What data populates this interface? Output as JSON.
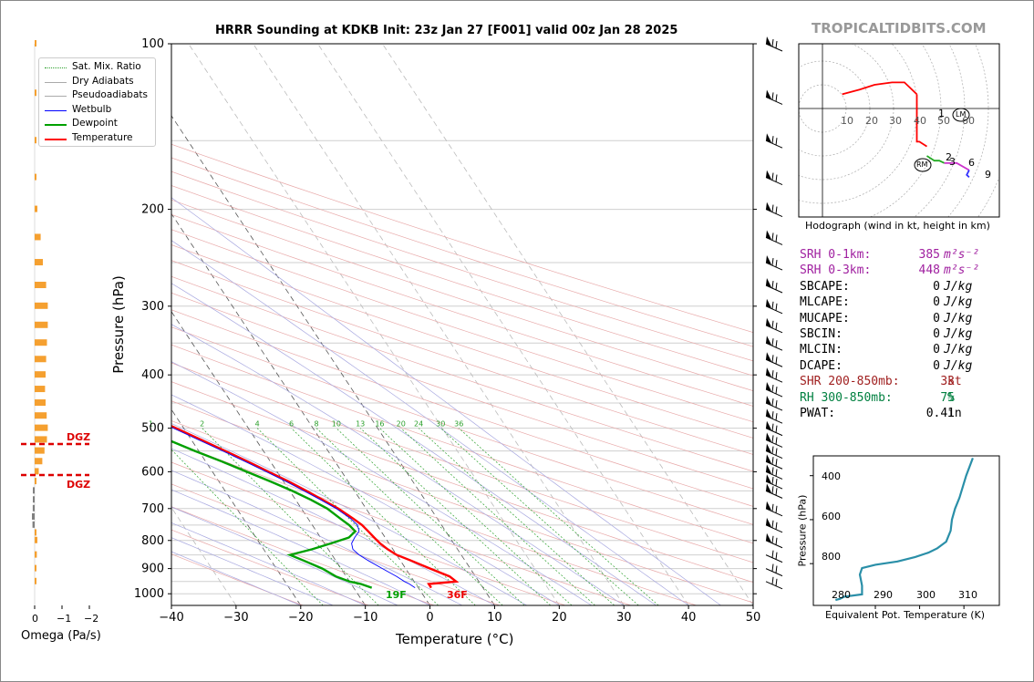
{
  "title": "HRRR Sounding at KDKB Init: 23z Jan 27 [F001] valid 00z Jan 28 2025",
  "watermark": "TROPICALTIDBITS.COM",
  "omega": {
    "xlabel": "Omega (Pa/s)",
    "ticks": [
      "0",
      "−1",
      "−2"
    ],
    "dgz_label": "DGZ"
  },
  "skewt": {
    "xlabel": "Temperature (°C)",
    "ylabel": "Pressure (hPa)",
    "mix_labels": [
      "1",
      "2",
      "4",
      "6",
      "8",
      "10",
      "13",
      "16",
      "20",
      "24",
      "30",
      "36"
    ],
    "dewpoint_sfc_label": "19F",
    "temp_sfc_label": "36F"
  },
  "legend": [
    {
      "label": "Sat. Mix. Ratio",
      "color": "#2ca02c"
    },
    {
      "label": "Dry Adiabats",
      "color": "#aaaaaa"
    },
    {
      "label": "Pseudoadiabats",
      "color": "#aaaaaa"
    },
    {
      "label": "Wetbulb",
      "color": "#0000ff"
    },
    {
      "label": "Dewpoint",
      "color": "#00a000"
    },
    {
      "label": "Temperature",
      "color": "#ff0000"
    }
  ],
  "hodograph": {
    "caption": "Hodograph (wind in kt, height in km)",
    "ring_labels": [
      "10",
      "20",
      "30",
      "40",
      "50",
      "60"
    ],
    "height_labels": [
      "1",
      "2",
      "3",
      "6",
      "9"
    ],
    "rm_label": "RM",
    "lm_label": "LM"
  },
  "stats": [
    {
      "name": "SRH 0-1km:",
      "value": "385",
      "unit": "m²s⁻²",
      "color": "#a020a0"
    },
    {
      "name": "SRH 0-3km:",
      "value": "448",
      "unit": "m²s⁻²",
      "color": "#a020a0"
    },
    {
      "name": "SBCAPE:",
      "value": "0",
      "unit": "J/kg",
      "color": "#000000"
    },
    {
      "name": "MLCAPE:",
      "value": "0",
      "unit": "J/kg",
      "color": "#000000"
    },
    {
      "name": "MUCAPE:",
      "value": "0",
      "unit": "J/kg",
      "color": "#000000"
    },
    {
      "name": "SBCIN:",
      "value": "0",
      "unit": "J/kg",
      "color": "#000000"
    },
    {
      "name": "MLCIN:",
      "value": "0",
      "unit": "J/kg",
      "color": "#000000"
    },
    {
      "name": "DCAPE:",
      "value": "0",
      "unit": "J/kg",
      "color": "#000000"
    },
    {
      "name": "SHR 200-850mb:",
      "value": "33",
      "unit": "kt",
      "color": "#a02020"
    },
    {
      "name": "RH 300-850mb:",
      "value": "75",
      "unit": "%",
      "color": "#008040"
    },
    {
      "name": "PWAT:",
      "value": "0.41",
      "unit": "in",
      "color": "#000000"
    }
  ],
  "theta_e": {
    "xlabel": "Equivalent Pot. Temperature (K)",
    "ylabel": "Pressure (hPa)",
    "xticks": [
      "280",
      "290",
      "300",
      "310"
    ],
    "yticks": [
      "400",
      "600",
      "800"
    ]
  },
  "chart_data": [
    {
      "type": "line",
      "title": "HRRR Sounding at KDKB Init: 23z Jan 27 [F001] valid 00z Jan 28 2025",
      "xlabel": "Temperature (°C)",
      "ylabel": "Pressure (hPa)",
      "xlim": [
        -40,
        50
      ],
      "ylim": [
        1050,
        100
      ],
      "y_scale": "log",
      "skew": true,
      "x_ticks": [
        -40,
        -30,
        -20,
        -10,
        0,
        10,
        20,
        30,
        40,
        50
      ],
      "y_ticks": [
        100,
        200,
        300,
        400,
        500,
        600,
        700,
        800,
        900,
        1000
      ],
      "grid": true,
      "legend": "top-left",
      "series": [
        {
          "name": "Temperature",
          "color": "#ff0000",
          "p": [
            975,
            960,
            950,
            930,
            900,
            870,
            850,
            830,
            810,
            790,
            770,
            750,
            730,
            700,
            675,
            650,
            625,
            600,
            575,
            550,
            525,
            500,
            475,
            450,
            425,
            400,
            375,
            350,
            325,
            300,
            275,
            250,
            225,
            200,
            175,
            150,
            125,
            100
          ],
          "t": [
            2,
            2,
            6.5,
            6,
            3.8,
            1.6,
            0,
            -0.8,
            -1.4,
            -1.7,
            -2,
            -2.3,
            -3,
            -4.3,
            -5.8,
            -7.4,
            -9.2,
            -11.3,
            -13.5,
            -15.9,
            -18.5,
            -21.2,
            -24.2,
            -27.5,
            -31,
            -35,
            -39.2,
            -43.7,
            -48.5,
            -53.7,
            -58.9,
            -61.6,
            -60.5,
            -59,
            -57.8,
            -57.5,
            -58,
            -57.6
          ]
        },
        {
          "name": "Wetbulb",
          "color": "#0000ff",
          "p": [
            975,
            960,
            950,
            930,
            900,
            870,
            850,
            830,
            810,
            790,
            770,
            750,
            730,
            700,
            675,
            650,
            625,
            600,
            575,
            550,
            525,
            500,
            475,
            450,
            425,
            400,
            375,
            350,
            325,
            300,
            275,
            250,
            225,
            200,
            175,
            150,
            125,
            100
          ],
          "t": [
            -0.5,
            -1,
            -1.5,
            -2.2,
            -3.6,
            -5,
            -5.8,
            -6.2,
            -5.8,
            -4.7,
            -3.4,
            -3,
            -3.4,
            -4.6,
            -6.1,
            -7.8,
            -9.6,
            -11.7,
            -13.9,
            -16.3,
            -18.9,
            -21.6,
            -24.6,
            -27.9,
            -31.4,
            -35.4,
            -39.6,
            -44.1,
            -48.9,
            -54,
            -59.2,
            -61.8,
            -60.8,
            -59.3,
            -58.1,
            -57.8,
            -58.3,
            -57.9
          ]
        },
        {
          "name": "Dewpoint",
          "color": "#00a000",
          "p": [
            975,
            960,
            950,
            930,
            900,
            870,
            850,
            830,
            810,
            790,
            770,
            750,
            730,
            700,
            675,
            650,
            625,
            600,
            575,
            550,
            525,
            500,
            475,
            450,
            425,
            400,
            375,
            350,
            325,
            300,
            275,
            250,
            225,
            200,
            175,
            150,
            125,
            100
          ],
          "t": [
            -7.2,
            -8.5,
            -10,
            -11.6,
            -12.9,
            -15,
            -16.5,
            -12.5,
            -9,
            -5.6,
            -4,
            -4.3,
            -5,
            -6,
            -7.6,
            -9.6,
            -12,
            -14.7,
            -17.5,
            -20.6,
            -23.6,
            -26.5,
            -30,
            -33.5,
            -37.5,
            -42,
            -47,
            -53,
            -60,
            -67,
            -73,
            -77,
            -80,
            -83,
            -84,
            -85,
            -82,
            -75
          ]
        }
      ]
    },
    {
      "type": "bar",
      "title": "",
      "xlabel": "Omega (Pa/s)",
      "xlim": [
        0,
        -2
      ],
      "values": [
        -0.02,
        -0.04,
        -0.03,
        -0.06,
        -0.1,
        -0.22,
        -0.3,
        -0.42,
        -0.48,
        -0.48,
        -0.45,
        -0.42,
        -0.4,
        -0.38,
        -0.4,
        -0.44,
        -0.48,
        -0.45,
        -0.36,
        -0.28,
        -0.15,
        -0.05,
        0.02,
        0.04,
        0.07,
        0.1,
        0.08,
        -0.05,
        -0.1,
        -0.08,
        -0.05,
        -0.03
      ],
      "pressures": [
        100,
        123,
        150,
        175,
        200,
        225,
        250,
        275,
        300,
        325,
        350,
        375,
        400,
        425,
        450,
        475,
        500,
        525,
        550,
        575,
        600,
        625,
        650,
        675,
        700,
        725,
        750,
        775,
        800,
        850,
        900,
        950
      ]
    },
    {
      "type": "line",
      "title": "Hodograph (wind in kt, height in km)",
      "units": "kt",
      "ring_spacing": 10,
      "series": [
        {
          "name": "0-1 km",
          "color": "#ff0000",
          "u": [
            -25,
            -18,
            -12,
            -5,
            0,
            2,
            5
          ],
          "v": [
            6,
            8,
            10,
            11,
            11,
            9,
            6
          ]
        },
        {
          "name": "1-3 km",
          "color": "#ff0000",
          "u": [
            5,
            5,
            5,
            5,
            6,
            9
          ],
          "v": [
            6,
            -3,
            -11,
            -14,
            -14,
            -16
          ]
        },
        {
          "name": "3-6 km",
          "color": "#22aa22",
          "u": [
            9,
            12,
            14,
            16
          ],
          "v": [
            -20,
            -22,
            -22,
            -23
          ]
        },
        {
          "name": "6-9 km",
          "color": "#cc33cc",
          "u": [
            16,
            21,
            26
          ],
          "v": [
            -23,
            -23,
            -26
          ]
        },
        {
          "name": "9+ km",
          "color": "#3333ff",
          "u": [
            26,
            25,
            26
          ],
          "v": [
            -26,
            -28,
            -29
          ]
        }
      ],
      "storm_motion": {
        "RM": [
          -2,
          -23
        ],
        "LM": [
          10,
          0
        ]
      }
    },
    {
      "type": "line",
      "title": "",
      "xlabel": "Equivalent Pot. Temperature (K)",
      "ylabel": "Pressure (hPa)",
      "xlim": [
        276,
        318
      ],
      "ylim": [
        990,
        310
      ],
      "series": [
        {
          "name": "",
          "color": "#2a8fa8",
          "thetae": [
            281,
            282,
            283,
            287,
            287,
            286.5,
            287,
            290,
            295,
            299,
            302,
            304,
            306,
            307,
            307.3,
            308,
            309,
            310.5,
            312
          ],
          "p": [
            965,
            960,
            950,
            940,
            900,
            850,
            820,
            805,
            790,
            770,
            750,
            730,
            700,
            650,
            600,
            550,
            500,
            400,
            320
          ]
        }
      ]
    }
  ]
}
